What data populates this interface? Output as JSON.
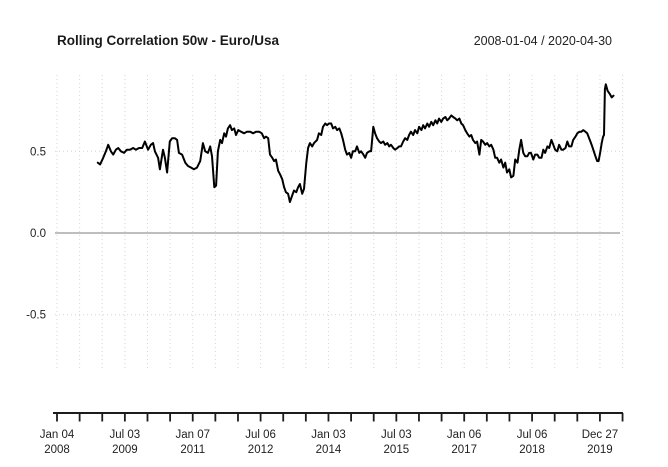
{
  "chart_data": {
    "type": "line",
    "title": "Rolling Correlation 50w - Euro/Usa",
    "period": "2008-01-04 / 2020-04-30",
    "xlabel": "",
    "ylabel": "",
    "legend": "none",
    "grid": "dotted vertical half-year lines and dotted horizontal lines at ±0.5, solid grey line at 0",
    "xlim": [
      2008.01,
      2020.5
    ],
    "ylim": [
      -0.82,
      0.96
    ],
    "y_ticks": [
      {
        "value": 0.5,
        "label": "0.5"
      },
      {
        "value": 0.0,
        "label": "0.0"
      },
      {
        "value": -0.5,
        "label": "-0.5"
      }
    ],
    "x_ticks": [
      {
        "line1": "Jan 04",
        "line2": "2008"
      },
      {
        "line1": "Jul 03",
        "line2": "2009"
      },
      {
        "line1": "Jan 07",
        "line2": "2011"
      },
      {
        "line1": "Jul 06",
        "line2": "2012"
      },
      {
        "line1": "Jan 03",
        "line2": "2014"
      },
      {
        "line1": "Jul 03",
        "line2": "2015"
      },
      {
        "line1": "Jan 06",
        "line2": "2017"
      },
      {
        "line1": "Jul 06",
        "line2": "2018"
      },
      {
        "line1": "Dec 27",
        "line2": "2019"
      }
    ],
    "colors": {
      "line": "#000000",
      "grid": "#d6d6d6",
      "zero_line": "#a9a9a9",
      "axis": "#1c1c1c",
      "text": "#1f1f1f"
    },
    "series": [
      {
        "name": "rolling-correlation-50w",
        "points": [
          [
            2008.91,
            0.43
          ],
          [
            2008.96,
            0.42
          ],
          [
            2009.03,
            0.46
          ],
          [
            2009.09,
            0.5
          ],
          [
            2009.14,
            0.54
          ],
          [
            2009.2,
            0.5
          ],
          [
            2009.25,
            0.48
          ],
          [
            2009.31,
            0.51
          ],
          [
            2009.36,
            0.52
          ],
          [
            2009.42,
            0.5
          ],
          [
            2009.49,
            0.49
          ],
          [
            2009.55,
            0.51
          ],
          [
            2009.62,
            0.51
          ],
          [
            2009.69,
            0.52
          ],
          [
            2009.75,
            0.51
          ],
          [
            2009.82,
            0.52
          ],
          [
            2009.89,
            0.52
          ],
          [
            2009.95,
            0.56
          ],
          [
            2010.02,
            0.51
          ],
          [
            2010.08,
            0.54
          ],
          [
            2010.13,
            0.55
          ],
          [
            2010.17,
            0.5
          ],
          [
            2010.24,
            0.46
          ],
          [
            2010.28,
            0.39
          ],
          [
            2010.35,
            0.51
          ],
          [
            2010.39,
            0.46
          ],
          [
            2010.44,
            0.37
          ],
          [
            2010.5,
            0.56
          ],
          [
            2010.55,
            0.58
          ],
          [
            2010.61,
            0.58
          ],
          [
            2010.66,
            0.57
          ],
          [
            2010.7,
            0.49
          ],
          [
            2010.77,
            0.48
          ],
          [
            2010.84,
            0.43
          ],
          [
            2010.9,
            0.41
          ],
          [
            2010.97,
            0.4
          ],
          [
            2011.03,
            0.39
          ],
          [
            2011.1,
            0.4
          ],
          [
            2011.17,
            0.44
          ],
          [
            2011.23,
            0.55
          ],
          [
            2011.28,
            0.5
          ],
          [
            2011.34,
            0.49
          ],
          [
            2011.39,
            0.53
          ],
          [
            2011.43,
            0.47
          ],
          [
            2011.48,
            0.28
          ],
          [
            2011.52,
            0.29
          ],
          [
            2011.56,
            0.5
          ],
          [
            2011.61,
            0.57
          ],
          [
            2011.65,
            0.55
          ],
          [
            2011.7,
            0.61
          ],
          [
            2011.74,
            0.59
          ],
          [
            2011.78,
            0.64
          ],
          [
            2011.83,
            0.66
          ],
          [
            2011.87,
            0.63
          ],
          [
            2011.92,
            0.64
          ],
          [
            2011.96,
            0.6
          ],
          [
            2012.01,
            0.63
          ],
          [
            2012.07,
            0.62
          ],
          [
            2012.14,
            0.61
          ],
          [
            2012.2,
            0.62
          ],
          [
            2012.27,
            0.62
          ],
          [
            2012.34,
            0.61
          ],
          [
            2012.4,
            0.62
          ],
          [
            2012.47,
            0.62
          ],
          [
            2012.53,
            0.61
          ],
          [
            2012.58,
            0.58
          ],
          [
            2012.62,
            0.59
          ],
          [
            2012.67,
            0.58
          ],
          [
            2012.71,
            0.48
          ],
          [
            2012.76,
            0.46
          ],
          [
            2012.8,
            0.44
          ],
          [
            2012.84,
            0.45
          ],
          [
            2012.89,
            0.38
          ],
          [
            2012.93,
            0.36
          ],
          [
            2012.98,
            0.33
          ],
          [
            2013.02,
            0.28
          ],
          [
            2013.06,
            0.25
          ],
          [
            2013.11,
            0.24
          ],
          [
            2013.15,
            0.19
          ],
          [
            2013.2,
            0.23
          ],
          [
            2013.24,
            0.26
          ],
          [
            2013.29,
            0.25
          ],
          [
            2013.33,
            0.28
          ],
          [
            2013.37,
            0.3
          ],
          [
            2013.42,
            0.24
          ],
          [
            2013.46,
            0.27
          ],
          [
            2013.51,
            0.43
          ],
          [
            2013.55,
            0.52
          ],
          [
            2013.59,
            0.55
          ],
          [
            2013.64,
            0.53
          ],
          [
            2013.68,
            0.55
          ],
          [
            2013.75,
            0.57
          ],
          [
            2013.79,
            0.61
          ],
          [
            2013.84,
            0.6
          ],
          [
            2013.88,
            0.65
          ],
          [
            2013.93,
            0.67
          ],
          [
            2013.97,
            0.66
          ],
          [
            2014.01,
            0.67
          ],
          [
            2014.06,
            0.67
          ],
          [
            2014.1,
            0.64
          ],
          [
            2014.15,
            0.65
          ],
          [
            2014.19,
            0.63
          ],
          [
            2014.24,
            0.64
          ],
          [
            2014.28,
            0.61
          ],
          [
            2014.32,
            0.57
          ],
          [
            2014.37,
            0.51
          ],
          [
            2014.41,
            0.48
          ],
          [
            2014.46,
            0.49
          ],
          [
            2014.5,
            0.46
          ],
          [
            2014.54,
            0.5
          ],
          [
            2014.59,
            0.5
          ],
          [
            2014.63,
            0.53
          ],
          [
            2014.68,
            0.49
          ],
          [
            2014.72,
            0.5
          ],
          [
            2014.77,
            0.48
          ],
          [
            2014.81,
            0.46
          ],
          [
            2014.85,
            0.49
          ],
          [
            2014.9,
            0.5
          ],
          [
            2014.94,
            0.5
          ],
          [
            2014.99,
            0.65
          ],
          [
            2015.03,
            0.61
          ],
          [
            2015.07,
            0.58
          ],
          [
            2015.12,
            0.56
          ],
          [
            2015.16,
            0.55
          ],
          [
            2015.21,
            0.56
          ],
          [
            2015.25,
            0.54
          ],
          [
            2015.3,
            0.55
          ],
          [
            2015.34,
            0.53
          ],
          [
            2015.38,
            0.54
          ],
          [
            2015.43,
            0.52
          ],
          [
            2015.47,
            0.51
          ],
          [
            2015.52,
            0.52
          ],
          [
            2015.56,
            0.53
          ],
          [
            2015.6,
            0.53
          ],
          [
            2015.65,
            0.56
          ],
          [
            2015.69,
            0.58
          ],
          [
            2015.74,
            0.57
          ],
          [
            2015.78,
            0.6
          ],
          [
            2015.82,
            0.62
          ],
          [
            2015.87,
            0.6
          ],
          [
            2015.91,
            0.63
          ],
          [
            2015.96,
            0.61
          ],
          [
            2016.0,
            0.65
          ],
          [
            2016.05,
            0.63
          ],
          [
            2016.09,
            0.66
          ],
          [
            2016.13,
            0.64
          ],
          [
            2016.18,
            0.67
          ],
          [
            2016.22,
            0.65
          ],
          [
            2016.27,
            0.68
          ],
          [
            2016.31,
            0.66
          ],
          [
            2016.36,
            0.69
          ],
          [
            2016.4,
            0.67
          ],
          [
            2016.44,
            0.7
          ],
          [
            2016.49,
            0.68
          ],
          [
            2016.53,
            0.7
          ],
          [
            2016.58,
            0.71
          ],
          [
            2016.62,
            0.69
          ],
          [
            2016.66,
            0.7
          ],
          [
            2016.71,
            0.72
          ],
          [
            2016.75,
            0.71
          ],
          [
            2016.8,
            0.7
          ],
          [
            2016.84,
            0.69
          ],
          [
            2016.89,
            0.7
          ],
          [
            2016.93,
            0.67
          ],
          [
            2016.97,
            0.66
          ],
          [
            2017.02,
            0.63
          ],
          [
            2017.06,
            0.61
          ],
          [
            2017.11,
            0.59
          ],
          [
            2017.15,
            0.6
          ],
          [
            2017.19,
            0.57
          ],
          [
            2017.24,
            0.55
          ],
          [
            2017.28,
            0.56
          ],
          [
            2017.33,
            0.48
          ],
          [
            2017.37,
            0.57
          ],
          [
            2017.41,
            0.56
          ],
          [
            2017.46,
            0.54
          ],
          [
            2017.5,
            0.55
          ],
          [
            2017.55,
            0.53
          ],
          [
            2017.59,
            0.54
          ],
          [
            2017.64,
            0.51
          ],
          [
            2017.68,
            0.46
          ],
          [
            2017.72,
            0.46
          ],
          [
            2017.77,
            0.43
          ],
          [
            2017.81,
            0.45
          ],
          [
            2017.86,
            0.4
          ],
          [
            2017.9,
            0.43
          ],
          [
            2017.94,
            0.37
          ],
          [
            2017.99,
            0.39
          ],
          [
            2018.03,
            0.34
          ],
          [
            2018.08,
            0.35
          ],
          [
            2018.12,
            0.45
          ],
          [
            2018.17,
            0.43
          ],
          [
            2018.21,
            0.51
          ],
          [
            2018.25,
            0.57
          ],
          [
            2018.3,
            0.49
          ],
          [
            2018.34,
            0.47
          ],
          [
            2018.39,
            0.47
          ],
          [
            2018.43,
            0.49
          ],
          [
            2018.47,
            0.49
          ],
          [
            2018.52,
            0.45
          ],
          [
            2018.56,
            0.48
          ],
          [
            2018.61,
            0.48
          ],
          [
            2018.65,
            0.46
          ],
          [
            2018.7,
            0.46
          ],
          [
            2018.74,
            0.51
          ],
          [
            2018.78,
            0.49
          ],
          [
            2018.83,
            0.53
          ],
          [
            2018.87,
            0.52
          ],
          [
            2018.92,
            0.57
          ],
          [
            2018.96,
            0.54
          ],
          [
            2019.0,
            0.51
          ],
          [
            2019.05,
            0.5
          ],
          [
            2019.09,
            0.54
          ],
          [
            2019.14,
            0.51
          ],
          [
            2019.18,
            0.51
          ],
          [
            2019.23,
            0.52
          ],
          [
            2019.27,
            0.56
          ],
          [
            2019.31,
            0.53
          ],
          [
            2019.36,
            0.53
          ],
          [
            2019.4,
            0.57
          ],
          [
            2019.45,
            0.59
          ],
          [
            2019.49,
            0.61
          ],
          [
            2019.54,
            0.62
          ],
          [
            2019.58,
            0.62
          ],
          [
            2019.62,
            0.63
          ],
          [
            2019.67,
            0.62
          ],
          [
            2019.71,
            0.61
          ],
          [
            2019.78,
            0.56
          ],
          [
            2019.82,
            0.53
          ],
          [
            2019.89,
            0.47
          ],
          [
            2019.93,
            0.44
          ],
          [
            2019.96,
            0.44
          ],
          [
            2020.0,
            0.5
          ],
          [
            2020.03,
            0.55
          ],
          [
            2020.06,
            0.59
          ],
          [
            2020.08,
            0.6
          ],
          [
            2020.1,
            0.88
          ],
          [
            2020.12,
            0.91
          ],
          [
            2020.16,
            0.87
          ],
          [
            2020.21,
            0.85
          ],
          [
            2020.25,
            0.83
          ],
          [
            2020.29,
            0.84
          ]
        ]
      }
    ]
  }
}
